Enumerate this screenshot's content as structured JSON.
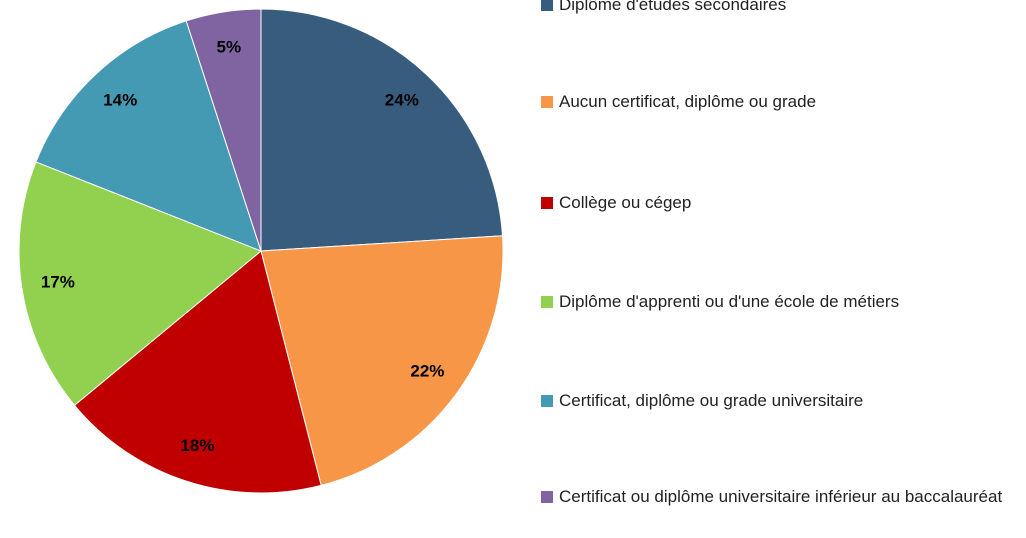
{
  "chart_data": {
    "type": "pie",
    "categories": [
      "Diplôme d'études secondaires",
      "Aucun certificat, diplôme ou grade",
      "Collège ou cégep",
      "Diplôme d'apprenti ou d'une école de métiers",
      "Certificat, diplôme ou grade universitaire",
      "Certificat ou diplôme universitaire inférieur au baccalauréat"
    ],
    "values": [
      24,
      22,
      18,
      17,
      14,
      5
    ],
    "value_labels": [
      "24%",
      "22%",
      "18%",
      "17%",
      "14%",
      "5%"
    ],
    "colors": [
      "#375c7e",
      "#f79646",
      "#c00000",
      "#92d050",
      "#4499b3",
      "#8064a2"
    ],
    "legend": "right"
  }
}
